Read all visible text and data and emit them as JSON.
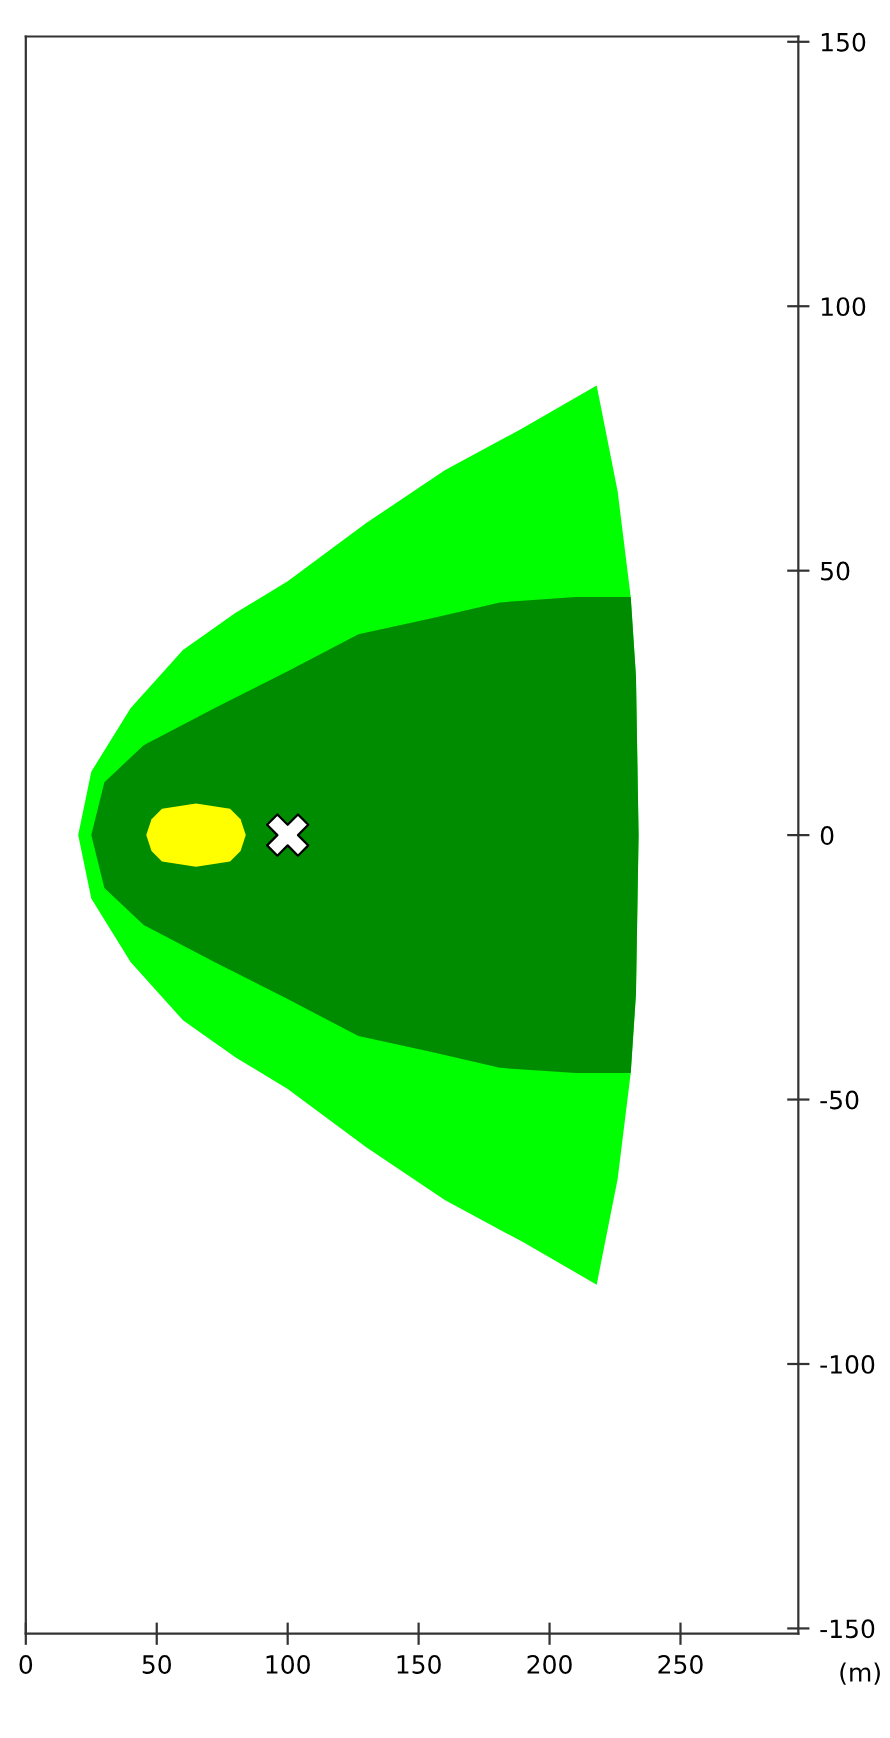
{
  "chart_data": {
    "type": "area",
    "xlabel": "(m)",
    "series": [
      {
        "color": "#00ff00",
        "x": [
          20,
          25,
          40,
          60,
          80,
          100,
          130,
          160,
          190,
          218,
          226,
          231,
          233,
          234,
          233,
          231,
          226,
          218,
          190,
          160,
          130,
          100,
          80,
          60,
          40,
          25
        ],
        "values": [
          0,
          12,
          24,
          35,
          42,
          48,
          59,
          69,
          77,
          85,
          65,
          45,
          30,
          0,
          -30,
          -45,
          -65,
          -85,
          -77,
          -69,
          -59,
          -48,
          -42,
          -35,
          -24,
          -12
        ]
      },
      {
        "color": "#008c00",
        "x": [
          25,
          30,
          45,
          72,
          100,
          127,
          155,
          181,
          210,
          231,
          233,
          234,
          233,
          231,
          210,
          181,
          155,
          127,
          100,
          72,
          45,
          30
        ],
        "values": [
          0,
          10,
          17,
          24,
          31,
          38,
          41,
          44,
          45,
          45,
          30,
          0,
          -30,
          -45,
          -45,
          -44,
          -41,
          -38,
          -31,
          -24,
          -17,
          -10
        ]
      },
      {
        "color": "#ffff00",
        "x": [
          46,
          48,
          52,
          65,
          78,
          82,
          84,
          82,
          78,
          65,
          52,
          48
        ],
        "values": [
          0,
          3,
          5,
          6,
          5,
          3,
          0,
          -3,
          -5,
          -6,
          -5,
          -3
        ]
      },
      {
        "type": "scatter",
        "color": "#ffffff",
        "marker": "cross",
        "x": [
          100
        ],
        "values": [
          0
        ]
      }
    ],
    "xlim": [
      0,
      295
    ],
    "xticks": [
      0,
      50,
      100,
      150,
      200,
      250
    ],
    "ylim": [
      -151,
      151
    ],
    "yticks": [
      -150,
      -100,
      -50,
      0,
      50,
      100,
      150
    ],
    "grid": false
  }
}
